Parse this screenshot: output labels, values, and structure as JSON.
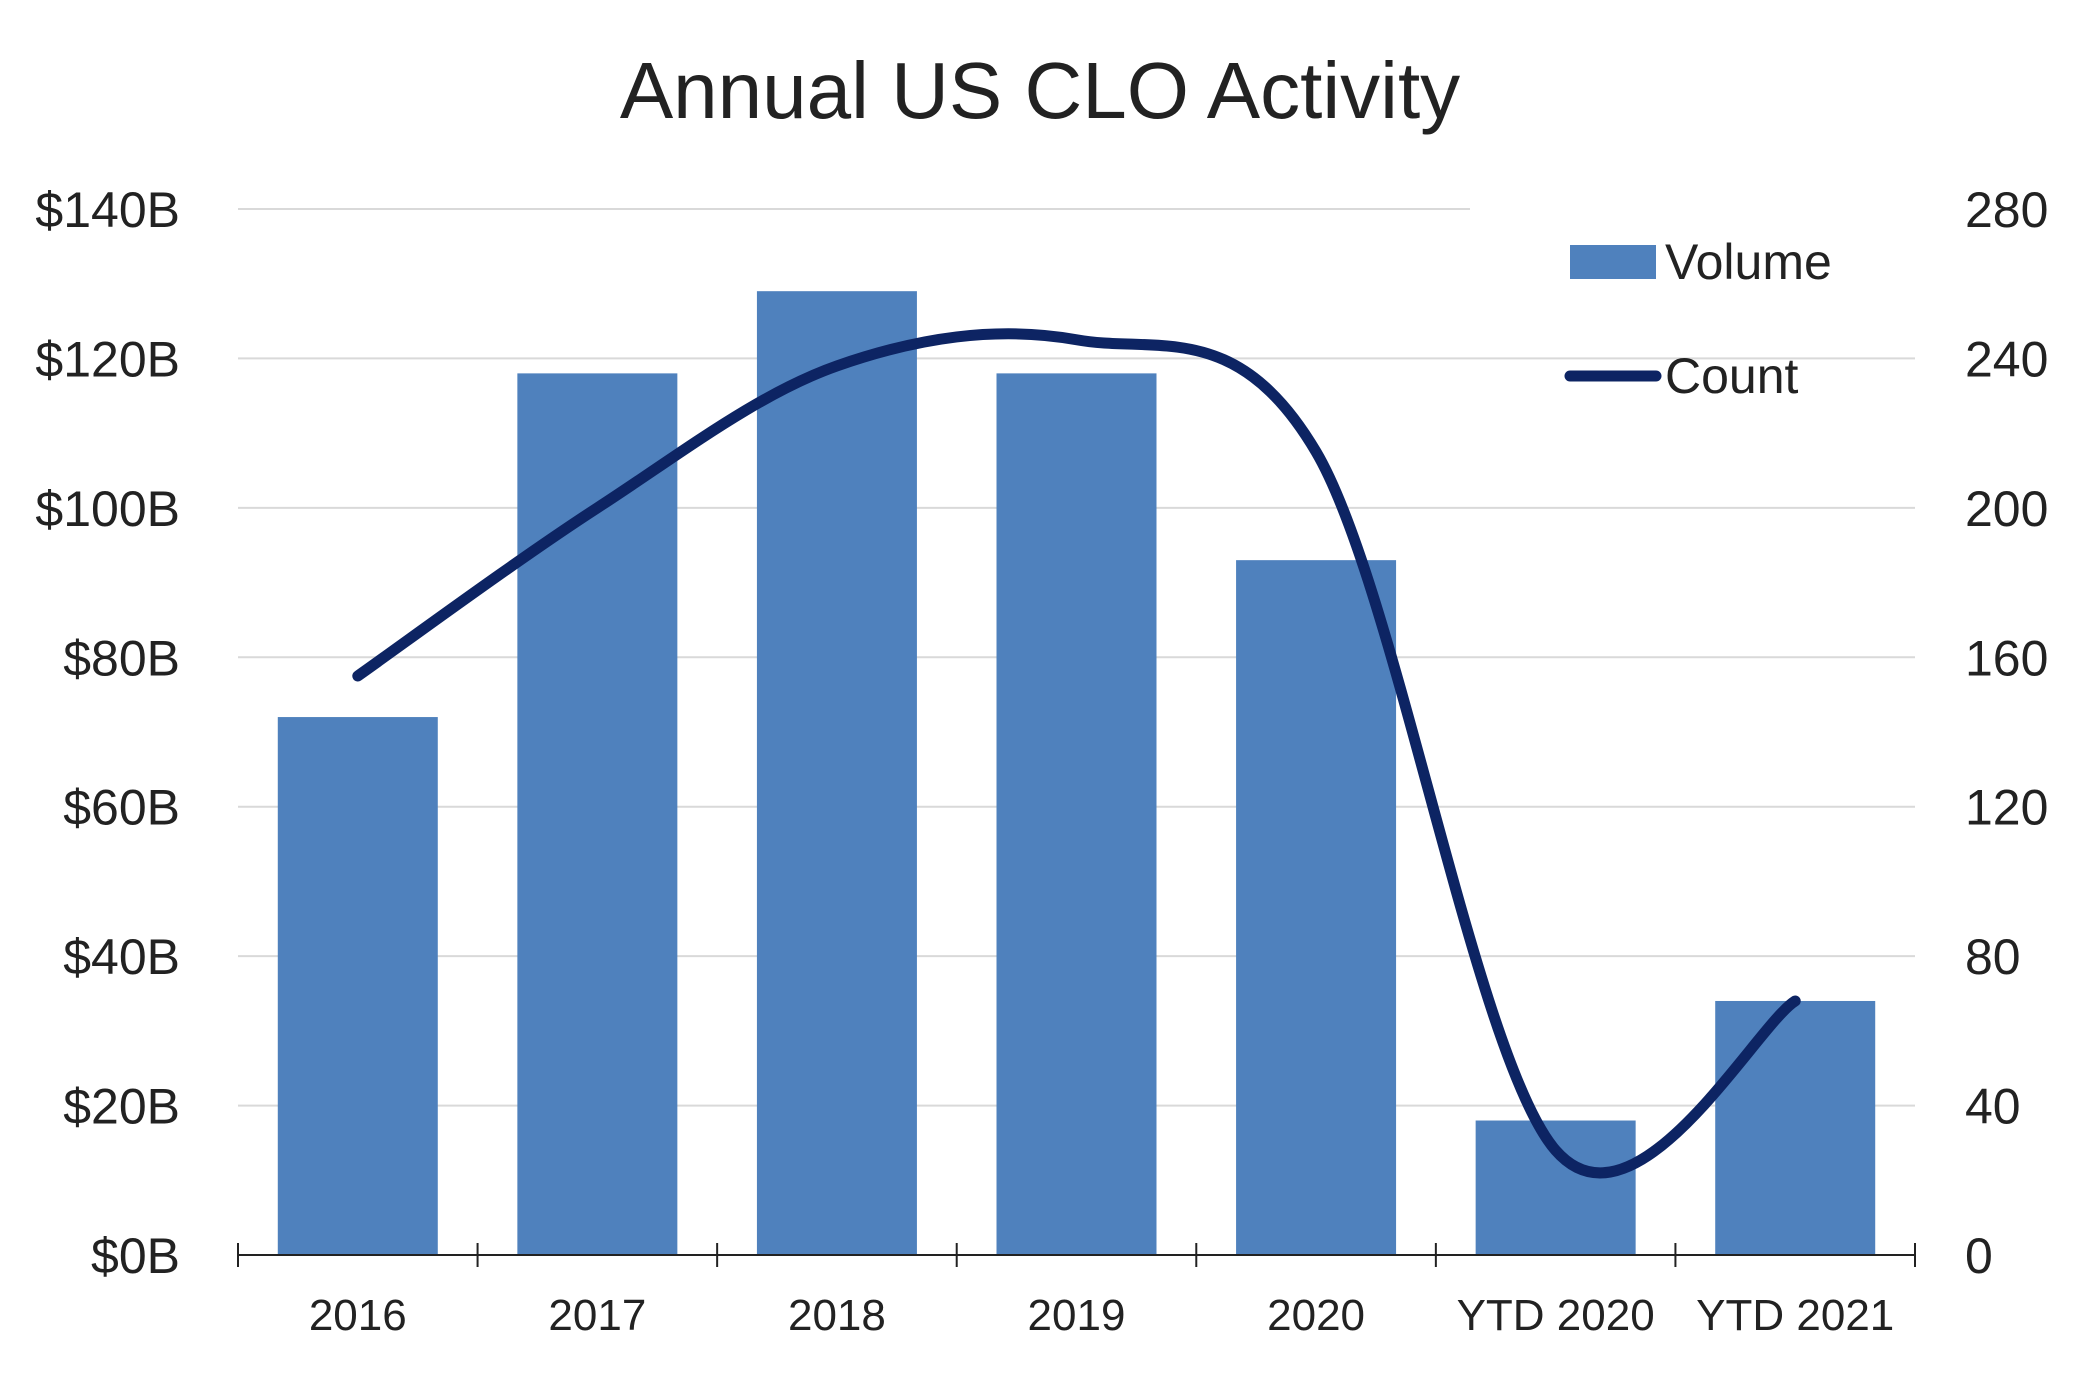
{
  "chart_data": {
    "type": "bar",
    "title": "Annual US CLO Activity",
    "categories": [
      "2016",
      "2017",
      "2018",
      "2019",
      "2020",
      "YTD 2020",
      "YTD 2021"
    ],
    "series": [
      {
        "name": "Volume",
        "type": "bar",
        "axis": "left",
        "color": "#4F81BD",
        "values": [
          72,
          118,
          129,
          118,
          93,
          18,
          34
        ]
      },
      {
        "name": "Count",
        "type": "line",
        "axis": "right",
        "color": "#0D2463",
        "smooth": true,
        "values": [
          155,
          200,
          238,
          245,
          215,
          28,
          68
        ]
      }
    ],
    "y_left": {
      "ylim": [
        0,
        140
      ],
      "ticks": [
        0,
        20,
        40,
        60,
        80,
        100,
        120,
        140
      ],
      "tick_labels": [
        "$0B",
        "$20B",
        "$40B",
        "$60B",
        "$80B",
        "$100B",
        "$120B",
        "$140B"
      ]
    },
    "y_right": {
      "ylim": [
        0,
        280
      ],
      "ticks": [
        0,
        40,
        80,
        120,
        160,
        200,
        240,
        280
      ],
      "tick_labels": [
        "0",
        "40",
        "80",
        "120",
        "160",
        "200",
        "240",
        "280"
      ]
    },
    "grid": true,
    "gridline_color": "#D9D9D9",
    "axis_color": "#222222",
    "legend": {
      "position": "top-right",
      "entries": [
        "Volume",
        "Count"
      ]
    }
  }
}
